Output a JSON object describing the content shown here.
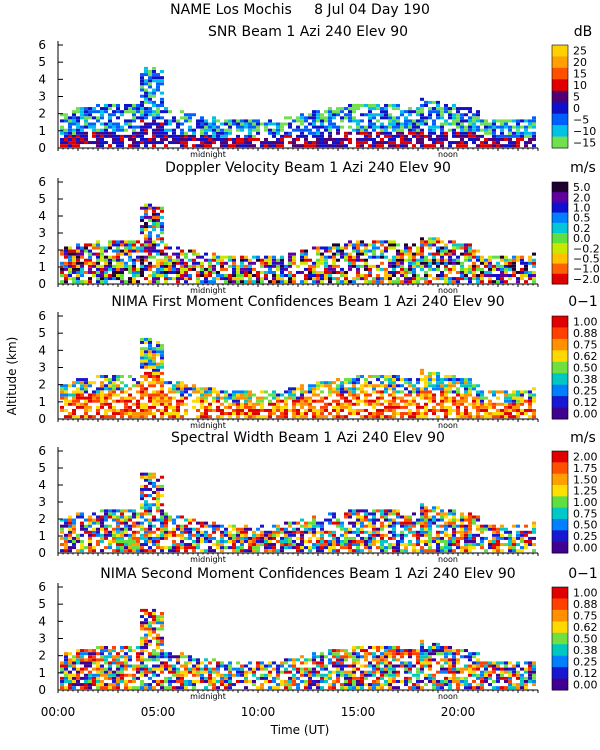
{
  "chart_data": {
    "type": "heatmap",
    "figure_title": "NAME Los Mochis     8 Jul 04 Day 190",
    "xlabel": "Time (UT)",
    "ylabel": "Altitude (km)",
    "x_ticks": [
      "00:00",
      "05:00",
      "10:00",
      "15:00",
      "20:00"
    ],
    "x_tick_hours": [
      0,
      5,
      10,
      15,
      20
    ],
    "xlim_hours": [
      0,
      24
    ],
    "ylim_km": [
      0,
      6
    ],
    "y_ticks": [
      0,
      1,
      2,
      3,
      4,
      5,
      6
    ],
    "markers": [
      {
        "label": "midnight",
        "hour": 7.5
      },
      {
        "label": "noon",
        "hour": 19.5
      }
    ],
    "panels": [
      {
        "title": "SNR Beam 1 Azi 240 Elev 90",
        "unit": "dB",
        "colorbar_labels": [
          "25",
          "20",
          "15",
          "10",
          "5",
          "0",
          "−5",
          "−10",
          "−15"
        ],
        "colorbar_colors": [
          "#FFD000",
          "#FFA000",
          "#FF5000",
          "#E00000",
          "#500070",
          "#1010C8",
          "#0060FF",
          "#00C0E8",
          "#70E050"
        ]
      },
      {
        "title": "Doppler Velocity Beam 1 Azi 240 Elev 90",
        "unit": "m/s",
        "colorbar_labels": [
          "5.0",
          "2.0",
          "1.0",
          "0.5",
          "0.2",
          "0.0",
          "−0.2",
          "−0.5",
          "−1.0",
          "−2.0"
        ],
        "colorbar_colors": [
          "#200030",
          "#6000A0",
          "#1010D0",
          "#0080FF",
          "#00C8D8",
          "#60E040",
          "#C8E800",
          "#FFC000",
          "#FF6000",
          "#E00000"
        ]
      },
      {
        "title": "NIMA First Moment Confidences Beam 1 Azi 240 Elev 90",
        "unit": "0−1",
        "colorbar_labels": [
          "1.00",
          "0.88",
          "0.75",
          "0.62",
          "0.50",
          "0.38",
          "0.25",
          "0.12",
          "0.00"
        ],
        "colorbar_colors": [
          "#E00000",
          "#FF4000",
          "#FF9000",
          "#FFD800",
          "#70E040",
          "#00C8C0",
          "#0080FF",
          "#1818D0",
          "#400090"
        ]
      },
      {
        "title": "Spectral Width Beam 1 Azi 240 Elev 90",
        "unit": "m/s",
        "colorbar_labels": [
          "2.00",
          "1.75",
          "1.50",
          "1.25",
          "1.00",
          "0.75",
          "0.50",
          "0.25",
          "0.00"
        ],
        "colorbar_colors": [
          "#E00000",
          "#FF5000",
          "#FFA000",
          "#FFE000",
          "#60E040",
          "#00C8C8",
          "#0080FF",
          "#1818D0",
          "#400090"
        ]
      },
      {
        "title": "NIMA Second Moment Confidences Beam 1 Azi 240 Elev 90",
        "unit": "0−1",
        "colorbar_labels": [
          "1.00",
          "0.88",
          "0.75",
          "0.62",
          "0.50",
          "0.38",
          "0.25",
          "0.12",
          "0.00"
        ],
        "colorbar_colors": [
          "#E00000",
          "#FF4000",
          "#FF9000",
          "#FFD800",
          "#70E040",
          "#00C8C0",
          "#0080FF",
          "#1818D0",
          "#400090"
        ]
      }
    ]
  }
}
